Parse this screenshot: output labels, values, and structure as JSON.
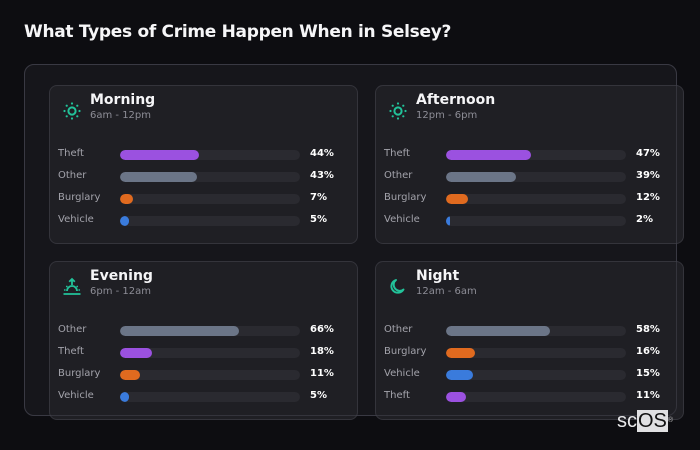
{
  "header": {
    "title": "What Types of Crime Happen When in Selsey?"
  },
  "colors": {
    "accent_icon": "#22c39a",
    "Theft": "#9b51e0",
    "Other": "#6b7587",
    "Burglary": "#e06a1f",
    "Vehicle": "#3a7bdc",
    "track": "#2a2a30"
  },
  "cards": [
    {
      "name": "Morning",
      "range": "6am - 12pm",
      "icon": "sun-icon",
      "rows": [
        {
          "label": "Theft",
          "value": 44,
          "pct": "44%"
        },
        {
          "label": "Other",
          "value": 43,
          "pct": "43%"
        },
        {
          "label": "Burglary",
          "value": 7,
          "pct": "7%"
        },
        {
          "label": "Vehicle",
          "value": 5,
          "pct": "5%"
        }
      ]
    },
    {
      "name": "Afternoon",
      "range": "12pm - 6pm",
      "icon": "sun-icon",
      "rows": [
        {
          "label": "Theft",
          "value": 47,
          "pct": "47%"
        },
        {
          "label": "Other",
          "value": 39,
          "pct": "39%"
        },
        {
          "label": "Burglary",
          "value": 12,
          "pct": "12%"
        },
        {
          "label": "Vehicle",
          "value": 2,
          "pct": "2%"
        }
      ]
    },
    {
      "name": "Evening",
      "range": "6pm - 12am",
      "icon": "sunset-icon",
      "rows": [
        {
          "label": "Other",
          "value": 66,
          "pct": "66%"
        },
        {
          "label": "Theft",
          "value": 18,
          "pct": "18%"
        },
        {
          "label": "Burglary",
          "value": 11,
          "pct": "11%"
        },
        {
          "label": "Vehicle",
          "value": 5,
          "pct": "5%"
        }
      ]
    },
    {
      "name": "Night",
      "range": "12am - 6am",
      "icon": "moon-icon",
      "rows": [
        {
          "label": "Other",
          "value": 58,
          "pct": "58%"
        },
        {
          "label": "Burglary",
          "value": 16,
          "pct": "16%"
        },
        {
          "label": "Vehicle",
          "value": 15,
          "pct": "15%"
        },
        {
          "label": "Theft",
          "value": 11,
          "pct": "11%"
        }
      ]
    }
  ],
  "logo": {
    "prefix": "sc",
    "boxed": "OS",
    "mark": "®"
  }
}
